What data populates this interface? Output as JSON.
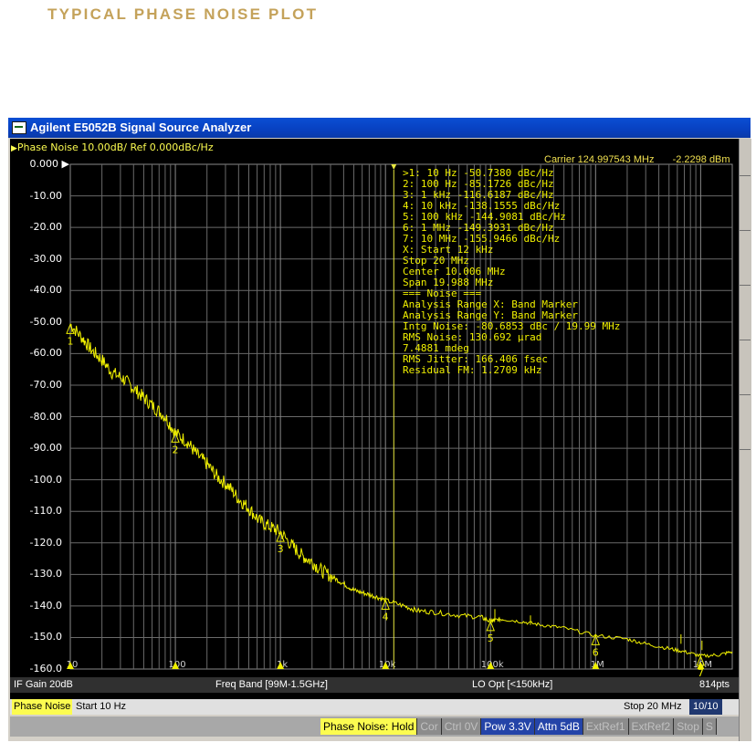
{
  "page_heading": "TYPICAL PHASE NOISE PLOT",
  "window": {
    "title": "Agilent E5052B Signal Source Analyzer"
  },
  "trace": {
    "header": "Phase Noise 10.00dB/ Ref 0.000dBc/Hz",
    "ref_label": "0.000",
    "carrier_info": "Carrier 124.997543 MHz",
    "carrier_level": "-2.2298 dBm",
    "y_labels": [
      "-10.00",
      "-20.00",
      "-30.00",
      "-40.00",
      "-50.00",
      "-60.00",
      "-70.00",
      "-80.00",
      "-90.00",
      "-100.0",
      "-110.0",
      "-120.0",
      "-130.0",
      "-140.0",
      "-150.0",
      "-160.0"
    ],
    "x_tick_labels": [
      "10",
      "100",
      "1k",
      "10k",
      "100k",
      "1M",
      "10M"
    ],
    "marker_labels": [
      "1",
      "2",
      "3",
      "4",
      "5",
      "6",
      "7"
    ],
    "trace_color": "#f0f000",
    "grid_color": "#6a6a6a"
  },
  "marker_table": {
    "rows": [
      ">1:  10 Hz      -50.7380 dBc/Hz",
      " 2:  100 Hz     -85.1726 dBc/Hz",
      " 3:  1 kHz     -116.6187 dBc/Hz",
      " 4:  10 kHz    -138.1555 dBc/Hz",
      " 5:  100 kHz   -144.9081 dBc/Hz",
      " 6:  1 MHz     -149.3931 dBc/Hz",
      " 7:  10 MHz    -155.9466 dBc/Hz",
      " X: Start 12 kHz",
      "     Stop 20 MHz",
      "   Center 10.006 MHz",
      "     Span 19.988 MHz",
      "=== Noise ===",
      "Analysis Range X: Band Marker",
      "Analysis Range Y: Band Marker",
      "Intg Noise: -80.6853 dBc / 19.99 MHz",
      " RMS Noise: 130.692 µrad",
      "            7.4881 mdeg",
      "RMS Jitter: 166.406 fsec",
      "Residual FM: 1.2709 kHz"
    ]
  },
  "status_bar_1": {
    "if_gain": "IF Gain 20dB",
    "freq_band": "Freq Band [99M-1.5GHz]",
    "lo_opt": "LO Opt [<150kHz]",
    "points": "814pts"
  },
  "status_bar_2": {
    "mode": "Phase Noise",
    "start": "Start 10 Hz",
    "stop": "Stop 20 MHz",
    "page": "10/10"
  },
  "softkeys": [
    {
      "label": "Phase Noise: Hold",
      "state": "active"
    },
    {
      "label": "Cor",
      "state": "off"
    },
    {
      "label": "Ctrl  0V",
      "state": "off"
    },
    {
      "label": "Pow  3.3V",
      "state": "on"
    },
    {
      "label": "Attn 5dB",
      "state": "on"
    },
    {
      "label": "ExtRef1",
      "state": "off"
    },
    {
      "label": "ExtRef2",
      "state": "off"
    },
    {
      "label": "Stop",
      "state": "off"
    },
    {
      "label": "S",
      "state": "off"
    }
  ],
  "chart_data": {
    "type": "line",
    "title": "Phase Noise 10.00dB/ Ref 0.000dBc/Hz",
    "x_scale": "log",
    "xlim": [
      10,
      20000000
    ],
    "ylim": [
      -160,
      0
    ],
    "x_tick_values": [
      10,
      100,
      1000,
      10000,
      100000,
      1000000,
      10000000
    ],
    "x_tick_labels": [
      "10",
      "100",
      "1k",
      "10k",
      "100k",
      "1M",
      "10M"
    ],
    "y_tick_values": [
      0,
      -10,
      -20,
      -30,
      -40,
      -50,
      -60,
      -70,
      -80,
      -90,
      -100,
      -110,
      -120,
      -130,
      -140,
      -150,
      -160
    ],
    "grid": true,
    "series": [
      {
        "x": [
          10,
          13,
          16,
          20,
          25,
          32,
          40,
          50,
          63,
          80,
          100,
          130,
          160,
          200,
          250,
          320,
          400,
          500,
          630,
          800,
          1000,
          1300,
          1600,
          2000,
          2500,
          3200,
          4000,
          5000,
          6300,
          8000,
          10000,
          15000,
          20000,
          30000,
          50000,
          80000,
          100000,
          110000,
          130000,
          200000,
          300000,
          500000,
          1000000,
          2000000,
          3000000,
          5000000,
          7000000,
          10000000,
          15000000,
          20000000
        ],
        "y": [
          -50.7,
          -55,
          -59,
          -62,
          -66,
          -68,
          -71,
          -74,
          -77,
          -80,
          -85.2,
          -88,
          -92,
          -95,
          -99,
          -102,
          -106,
          -109,
          -113,
          -115,
          -116.6,
          -121,
          -124,
          -126,
          -129,
          -131,
          -133,
          -135,
          -136,
          -137,
          -138.2,
          -140,
          -141.5,
          -142,
          -143,
          -143.5,
          -144.9,
          -144.5,
          -144.2,
          -145,
          -146,
          -147,
          -149.4,
          -150.5,
          -152,
          -153.5,
          -154.5,
          -155.9,
          -155.5,
          -154.5
        ]
      }
    ],
    "markers": [
      {
        "label": "1",
        "x": 10,
        "y": -50.738
      },
      {
        "label": "2",
        "x": 100,
        "y": -85.1726
      },
      {
        "label": "3",
        "x": 1000,
        "y": -116.6187
      },
      {
        "label": "4",
        "x": 10000,
        "y": -138.1555
      },
      {
        "label": "5",
        "x": 100000,
        "y": -144.9081
      },
      {
        "label": "6",
        "x": 1000000,
        "y": -149.3931
      },
      {
        "label": "7",
        "x": 10000000,
        "y": -155.9466
      }
    ],
    "band_marker_x": [
      12000,
      20000000
    ]
  }
}
